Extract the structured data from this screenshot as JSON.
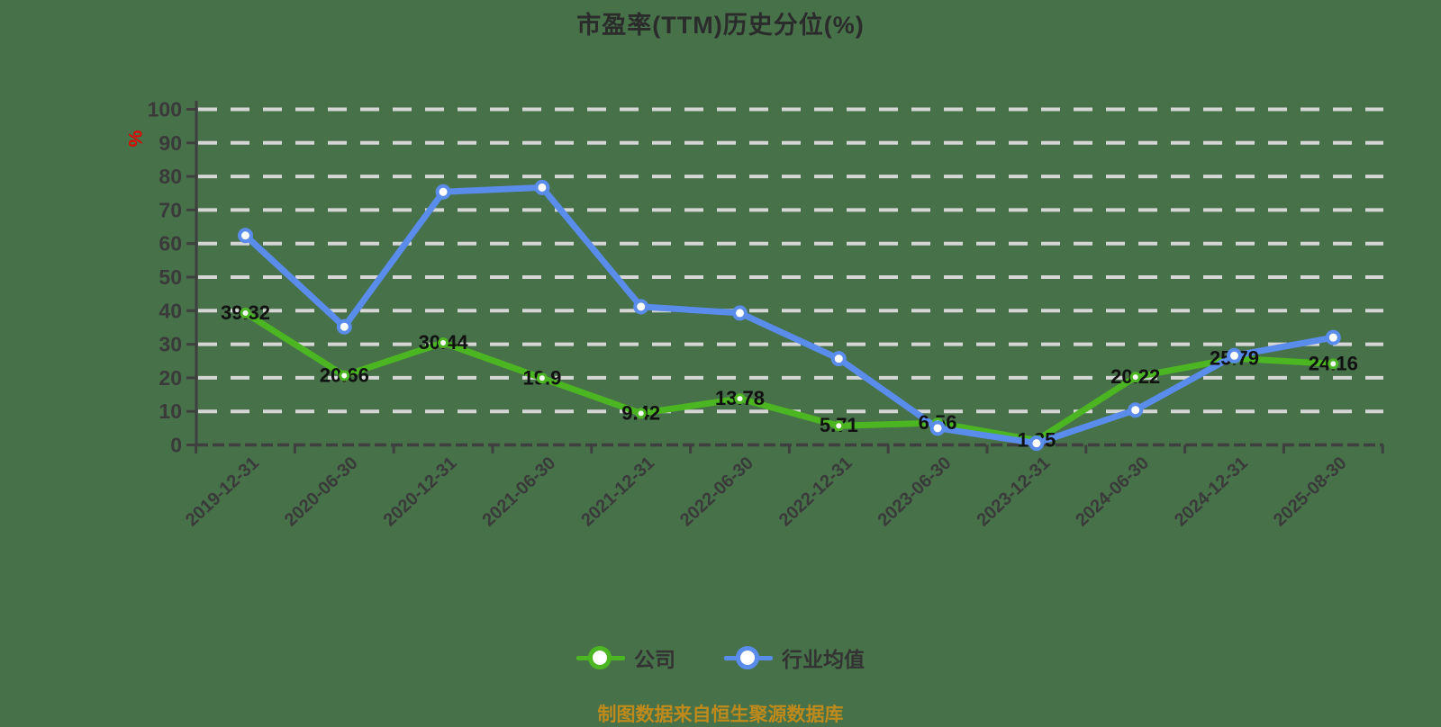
{
  "page": {
    "title": "市盈率(TTM)历史分位(%)",
    "footer": "制图数据来自恒生聚源数据库",
    "background_color": "#477149"
  },
  "legend": {
    "items": [
      {
        "label": "公司",
        "color": "#4cb522"
      },
      {
        "label": "行业均值",
        "color": "#5a8ceb"
      }
    ]
  },
  "chart_data": {
    "type": "line",
    "title": "市盈率(TTM)历史分位(%)",
    "grid": "horizontal dashed, light gray",
    "legend_position": "bottom center",
    "y_axis": {
      "unit": "%",
      "unit_color": "#e60000",
      "min": 0,
      "max": 100,
      "tick_step": 10
    },
    "categories": [
      "2019-12-31",
      "2020-06-30",
      "2020-12-31",
      "2021-06-30",
      "2021-12-31",
      "2022-06-30",
      "2022-12-31",
      "2023-06-30",
      "2023-12-31",
      "2024-06-30",
      "2024-12-31",
      "2025-08-30"
    ],
    "series": [
      {
        "name": "公司",
        "color": "#4cb522",
        "data_labels": true,
        "values": [
          39.32,
          20.66,
          30.44,
          19.9,
          9.42,
          13.78,
          5.71,
          6.56,
          1.35,
          20.22,
          25.79,
          24.16
        ]
      },
      {
        "name": "行业均值",
        "color": "#5a8ceb",
        "data_labels": false,
        "values": [
          62.4,
          35.2,
          75.4,
          76.7,
          41.2,
          39.3,
          25.7,
          5,
          0.5,
          10.4,
          26.6,
          32
        ]
      }
    ]
  },
  "style_colors": {
    "grid_line": "#d6d6d6",
    "axis_line": "#3f3f3f",
    "tick_label": "#3a3a3a",
    "data_label": "#111111",
    "title_text": "#2b2b2b",
    "footer_text": "#bf8a1c"
  }
}
